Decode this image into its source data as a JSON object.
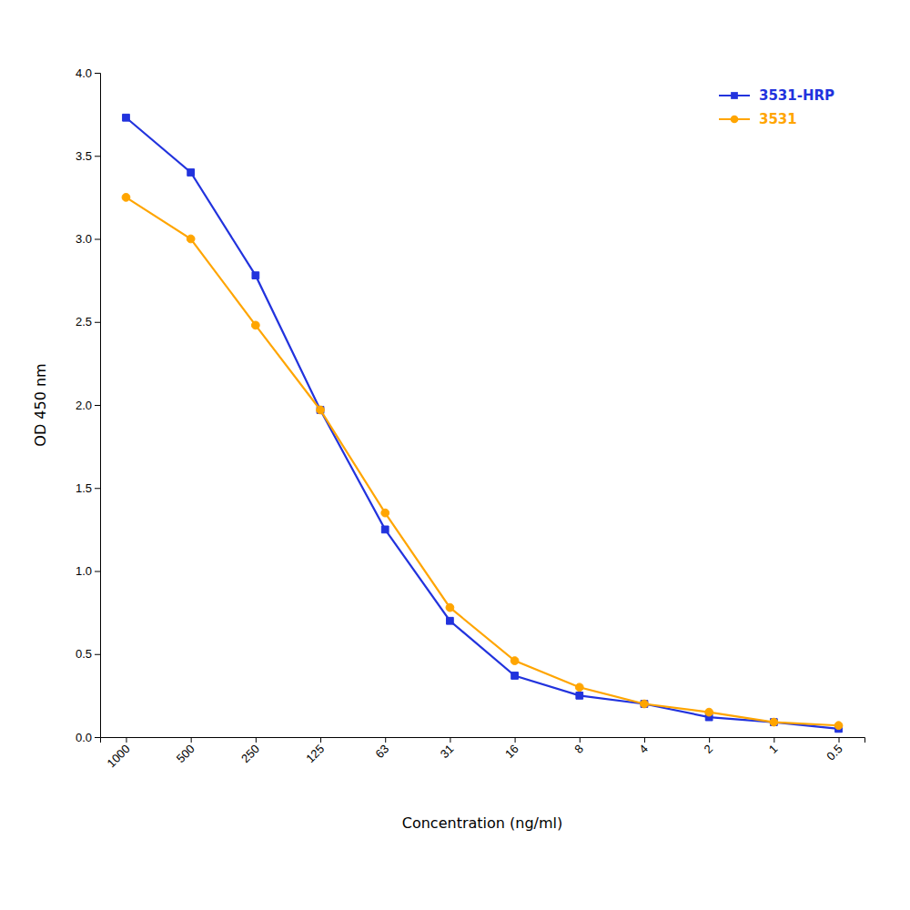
{
  "chart_data": {
    "type": "line",
    "categories": [
      "1000",
      "500",
      "250",
      "125",
      "63",
      "31",
      "16",
      "8",
      "4",
      "2",
      "1",
      "0.5"
    ],
    "series": [
      {
        "name": "3531-HRP",
        "color": "#2233DD",
        "marker": "square",
        "values": [
          3.73,
          3.4,
          2.78,
          1.97,
          1.25,
          0.7,
          0.37,
          0.25,
          0.2,
          0.12,
          0.09,
          0.05
        ]
      },
      {
        "name": "3531",
        "color": "#FFA500",
        "marker": "circle",
        "values": [
          3.25,
          3.0,
          2.48,
          1.97,
          1.35,
          0.78,
          0.46,
          0.3,
          0.2,
          0.15,
          0.09,
          0.07
        ]
      }
    ],
    "x_label": "Concentration (ng/ml)",
    "y_label": "OD 450 nm",
    "ylim": [
      0.0,
      4.0
    ],
    "yticks": [
      {
        "value": 0,
        "label": "0.0"
      },
      0.5,
      {
        "value": 1,
        "label": "1.0"
      },
      1.5,
      {
        "value": 2,
        "label": "2.0"
      },
      2.5,
      {
        "value": 3,
        "label": "3.0"
      },
      3.5,
      {
        "value": 4,
        "label": "4.0"
      }
    ],
    "grid": false,
    "legend": "upper right"
  }
}
